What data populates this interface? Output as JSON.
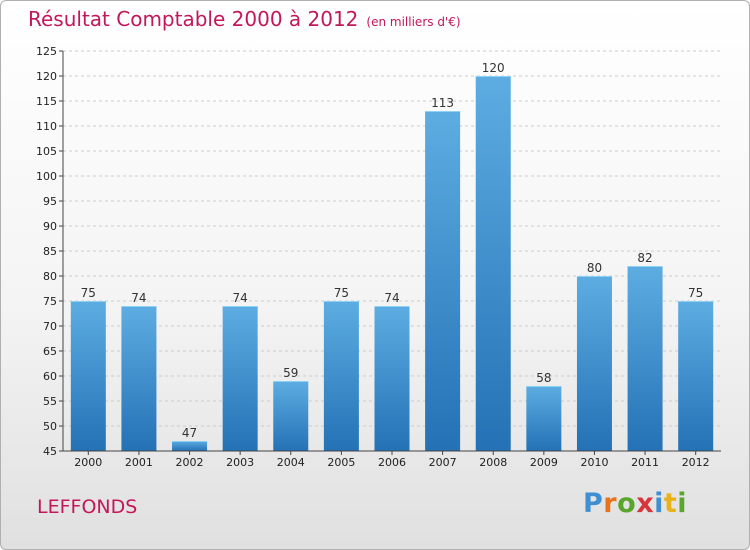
{
  "header": {
    "title": "Résultat Comptable 2000 à 2012",
    "unit": "(en milliers d'€)"
  },
  "commune": "LEFFONDS",
  "logo": {
    "text": "Proxiti",
    "letters": [
      "P",
      "r",
      "o",
      "x",
      "i",
      "t",
      "i"
    ],
    "colors": [
      "#3f8fd2",
      "#e8731a",
      "#5aa52c",
      "#d8353a",
      "#3f8fd2",
      "#e8b21a",
      "#5aa52c"
    ]
  },
  "colors": {
    "bar_top": "#5dade2",
    "bar_bottom": "#2471b5",
    "grid": "#cccccc",
    "title": "#c2185b"
  },
  "chart_data": {
    "type": "bar",
    "categories": [
      "2000",
      "2001",
      "2002",
      "2003",
      "2004",
      "2005",
      "2006",
      "2007",
      "2008",
      "2009",
      "2010",
      "2011",
      "2012"
    ],
    "values": [
      75,
      74,
      47,
      74,
      59,
      75,
      74,
      113,
      120,
      58,
      80,
      82,
      75
    ],
    "title": "Résultat Comptable 2000 à 2012",
    "xlabel": "",
    "ylabel": "",
    "ylim": [
      45,
      125
    ],
    "yticks": [
      45,
      50,
      55,
      60,
      65,
      70,
      75,
      80,
      85,
      90,
      95,
      100,
      105,
      110,
      115,
      120,
      125
    ],
    "grid": true,
    "data_labels": true
  }
}
